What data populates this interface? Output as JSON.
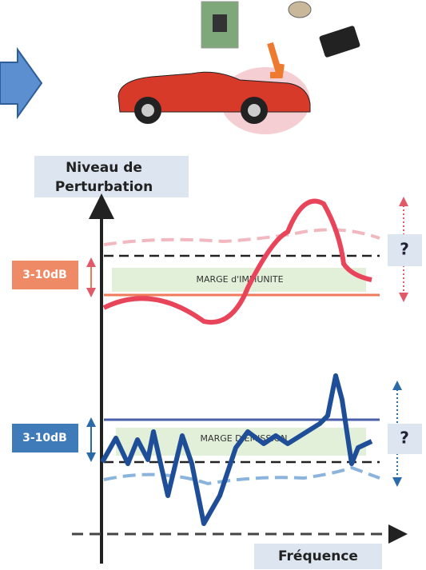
{
  "axis": {
    "y_label": [
      "Niveau de",
      "Perturbation"
    ],
    "x_label": "Fréquence"
  },
  "immunity": {
    "margin_label": "3-10dB",
    "band_label": "MARGE d'IMMUNITE",
    "question": "?"
  },
  "emission": {
    "margin_label": "3-10dB",
    "band_label": "MARGE D'EMISSION",
    "question": "?"
  }
}
